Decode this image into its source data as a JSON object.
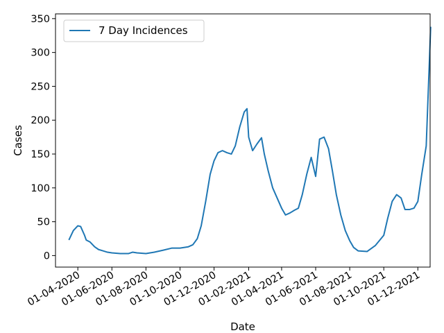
{
  "chart_data": {
    "type": "line",
    "title": "",
    "xlabel": "Date",
    "ylabel": "Cases",
    "legend_position": "top-left",
    "grid": false,
    "xlim": [
      "2020-02-21",
      "2021-12-23"
    ],
    "ylim": [
      -17,
      357
    ],
    "x_ticks": [
      {
        "date": "2020-04-01",
        "label": "01-04-2020"
      },
      {
        "date": "2020-06-01",
        "label": "01-06-2020"
      },
      {
        "date": "2020-08-01",
        "label": "01-08-2020"
      },
      {
        "date": "2020-10-01",
        "label": "01-10-2020"
      },
      {
        "date": "2020-12-01",
        "label": "01-12-2020"
      },
      {
        "date": "2021-02-01",
        "label": "01-02-2021"
      },
      {
        "date": "2021-04-01",
        "label": "01-04-2021"
      },
      {
        "date": "2021-06-01",
        "label": "01-06-2021"
      },
      {
        "date": "2021-08-01",
        "label": "01-08-2021"
      },
      {
        "date": "2021-10-01",
        "label": "01-10-2021"
      },
      {
        "date": "2021-12-01",
        "label": "01-12-2021"
      }
    ],
    "y_ticks": [
      0,
      50,
      100,
      150,
      200,
      250,
      300,
      350
    ],
    "series": [
      {
        "name": "7 Day Incidences",
        "color": "#1f77b4",
        "points": [
          [
            "2020-03-16",
            23
          ],
          [
            "2020-03-24",
            37
          ],
          [
            "2020-04-01",
            44
          ],
          [
            "2020-04-06",
            43
          ],
          [
            "2020-04-13",
            30
          ],
          [
            "2020-04-16",
            23
          ],
          [
            "2020-04-23",
            20
          ],
          [
            "2020-05-01",
            13
          ],
          [
            "2020-05-08",
            9
          ],
          [
            "2020-05-16",
            7
          ],
          [
            "2020-05-24",
            5
          ],
          [
            "2020-06-01",
            4
          ],
          [
            "2020-06-16",
            3
          ],
          [
            "2020-07-01",
            3
          ],
          [
            "2020-07-08",
            5
          ],
          [
            "2020-07-16",
            4
          ],
          [
            "2020-08-01",
            3
          ],
          [
            "2020-08-16",
            5
          ],
          [
            "2020-09-01",
            8
          ],
          [
            "2020-09-16",
            11
          ],
          [
            "2020-10-01",
            11
          ],
          [
            "2020-10-16",
            13
          ],
          [
            "2020-10-24",
            16
          ],
          [
            "2020-11-01",
            25
          ],
          [
            "2020-11-08",
            44
          ],
          [
            "2020-11-16",
            80
          ],
          [
            "2020-11-24",
            120
          ],
          [
            "2020-12-01",
            140
          ],
          [
            "2020-12-08",
            152
          ],
          [
            "2020-12-16",
            155
          ],
          [
            "2020-12-24",
            152
          ],
          [
            "2021-01-01",
            150
          ],
          [
            "2021-01-08",
            162
          ],
          [
            "2021-01-16",
            190
          ],
          [
            "2021-01-24",
            212
          ],
          [
            "2021-01-29",
            217
          ],
          [
            "2021-02-01",
            175
          ],
          [
            "2021-02-08",
            155
          ],
          [
            "2021-02-16",
            165
          ],
          [
            "2021-02-24",
            174
          ],
          [
            "2021-03-01",
            150
          ],
          [
            "2021-03-08",
            125
          ],
          [
            "2021-03-16",
            100
          ],
          [
            "2021-03-24",
            85
          ],
          [
            "2021-04-01",
            70
          ],
          [
            "2021-04-08",
            60
          ],
          [
            "2021-04-16",
            63
          ],
          [
            "2021-04-24",
            67
          ],
          [
            "2021-05-01",
            70
          ],
          [
            "2021-05-08",
            90
          ],
          [
            "2021-05-16",
            120
          ],
          [
            "2021-05-24",
            145
          ],
          [
            "2021-06-01",
            117
          ],
          [
            "2021-06-08",
            172
          ],
          [
            "2021-06-16",
            175
          ],
          [
            "2021-06-24",
            158
          ],
          [
            "2021-07-01",
            125
          ],
          [
            "2021-07-08",
            90
          ],
          [
            "2021-07-16",
            60
          ],
          [
            "2021-07-24",
            37
          ],
          [
            "2021-08-01",
            22
          ],
          [
            "2021-08-08",
            12
          ],
          [
            "2021-08-16",
            7
          ],
          [
            "2021-09-01",
            6
          ],
          [
            "2021-09-16",
            15
          ],
          [
            "2021-10-01",
            30
          ],
          [
            "2021-10-08",
            55
          ],
          [
            "2021-10-16",
            80
          ],
          [
            "2021-10-24",
            90
          ],
          [
            "2021-11-01",
            85
          ],
          [
            "2021-11-08",
            68
          ],
          [
            "2021-11-16",
            68
          ],
          [
            "2021-11-24",
            70
          ],
          [
            "2021-12-01",
            80
          ],
          [
            "2021-12-08",
            120
          ],
          [
            "2021-12-16",
            162
          ],
          [
            "2021-12-24",
            338
          ]
        ]
      }
    ]
  }
}
